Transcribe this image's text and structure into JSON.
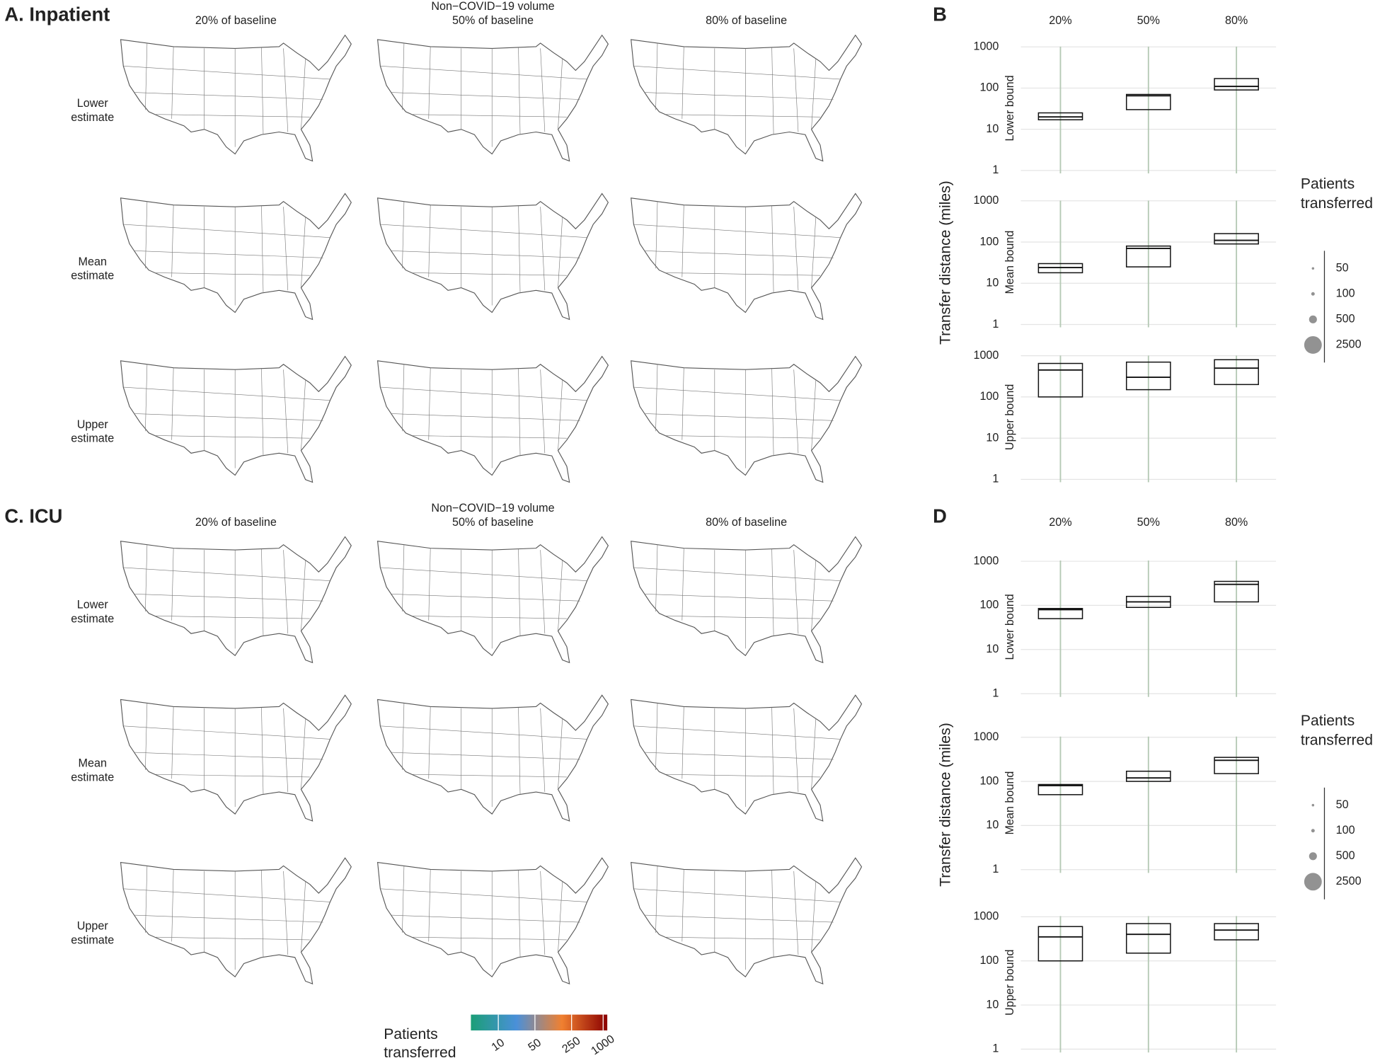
{
  "map_panels": [
    {
      "title": "A. Inpatient",
      "column_header": "Non−COVID−19 volume",
      "columns": [
        "20% of baseline",
        "50% of baseline",
        "80% of baseline"
      ],
      "rows": [
        [
          "Lower",
          "estimate"
        ],
        [
          "Mean",
          "estimate"
        ],
        [
          "Upper",
          "estimate"
        ]
      ]
    },
    {
      "title": "C. ICU",
      "column_header": "Non−COVID−19 volume",
      "columns": [
        "20% of baseline",
        "50% of baseline",
        "80% of baseline"
      ],
      "rows": [
        [
          "Lower",
          "estimate"
        ],
        [
          "Mean",
          "estimate"
        ],
        [
          "Upper",
          "estimate"
        ]
      ]
    }
  ],
  "color_legend": {
    "title": [
      "Patients",
      "transferred"
    ],
    "ticks": [
      10,
      50,
      250,
      1000
    ],
    "colors": [
      "#1b9e77",
      "#4a90d9",
      "#f08030",
      "#8b0000"
    ],
    "lim": [
      3,
      1200
    ]
  },
  "chart_data": [
    {
      "type": "box",
      "title": "B",
      "ylabel": "Transfer distance (miles)",
      "log_scale": true,
      "grid": true,
      "categories": [
        "20%",
        "50%",
        "80%"
      ],
      "ylim": [
        0.7,
        1500
      ],
      "yticks": [
        1,
        10,
        100,
        1000
      ],
      "facets": [
        {
          "name": "Lower bound",
          "q1": [
            17,
            30,
            90
          ],
          "median": [
            20,
            65,
            110
          ],
          "q3": [
            25,
            70,
            170
          ]
        },
        {
          "name": "Mean bound",
          "q1": [
            18,
            25,
            90
          ],
          "median": [
            24,
            70,
            110
          ],
          "q3": [
            30,
            80,
            160
          ]
        },
        {
          "name": "Upper bound",
          "q1": [
            100,
            150,
            200
          ],
          "median": [
            450,
            300,
            500
          ],
          "q3": [
            650,
            700,
            800
          ]
        }
      ],
      "size_legend": {
        "title": [
          "Patients",
          "transferred"
        ],
        "values": [
          50,
          100,
          500,
          2500
        ]
      }
    },
    {
      "type": "box",
      "title": "D",
      "ylabel": "Transfer distance (miles)",
      "log_scale": true,
      "grid": true,
      "categories": [
        "20%",
        "50%",
        "80%"
      ],
      "ylim": [
        0.7,
        1500
      ],
      "yticks": [
        1,
        10,
        100,
        1000
      ],
      "facets": [
        {
          "name": "Lower bound",
          "q1": [
            50,
            90,
            120
          ],
          "median": [
            80,
            120,
            300
          ],
          "q3": [
            85,
            160,
            350
          ]
        },
        {
          "name": "Mean bound",
          "q1": [
            50,
            100,
            150
          ],
          "median": [
            80,
            120,
            300
          ],
          "q3": [
            85,
            170,
            350
          ]
        },
        {
          "name": "Upper bound",
          "q1": [
            100,
            150,
            300
          ],
          "median": [
            350,
            400,
            500
          ],
          "q3": [
            600,
            700,
            700
          ]
        }
      ],
      "size_legend": {
        "title": [
          "Patients",
          "transferred"
        ],
        "values": [
          50,
          100,
          500,
          2500
        ]
      }
    }
  ]
}
